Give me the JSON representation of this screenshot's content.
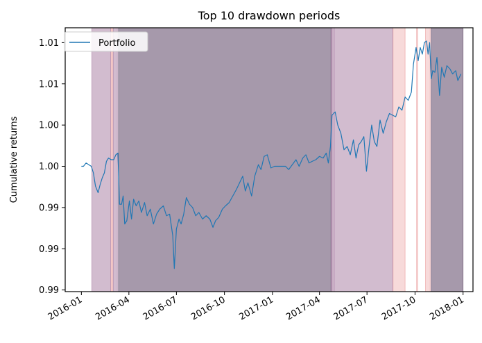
{
  "chart_data": {
    "type": "line",
    "title": "Top 10 drawdown periods",
    "xlabel": "",
    "ylabel": "Cumulative returns",
    "x_tick_labels": [
      "2016-01",
      "2016-04",
      "2016-07",
      "2016-10",
      "2017-01",
      "2017-04",
      "2017-07",
      "2017-10",
      "2018-01"
    ],
    "y_tick_labels": [
      "0.99",
      "0.99",
      "0.99",
      "1.00",
      "1.00",
      "1.01",
      "1.01"
    ],
    "y_tick_values": [
      0.9875,
      0.99,
      0.9925,
      0.995,
      0.9975,
      1.0,
      1.0025
    ],
    "ylim": [
      0.9874,
      1.0034
    ],
    "xlim": [
      "2015-12-01",
      "2018-01-20"
    ],
    "legend": {
      "position": "top-left",
      "entries": [
        "Portfolio"
      ]
    },
    "grid": false,
    "series": [
      {
        "name": "Portfolio",
        "color": "#1f77b4",
        "points": [
          [
            "2016-01-01",
            0.995
          ],
          [
            "2016-01-05",
            0.995
          ],
          [
            "2016-01-10",
            0.9952
          ],
          [
            "2016-01-15",
            0.9951
          ],
          [
            "2016-01-20",
            0.995
          ],
          [
            "2016-01-24",
            0.9946
          ],
          [
            "2016-01-28",
            0.9938
          ],
          [
            "2016-02-02",
            0.9934
          ],
          [
            "2016-02-06",
            0.9939
          ],
          [
            "2016-02-10",
            0.9943
          ],
          [
            "2016-02-14",
            0.9946
          ],
          [
            "2016-02-18",
            0.9953
          ],
          [
            "2016-02-22",
            0.9955
          ],
          [
            "2016-02-27",
            0.9954
          ],
          [
            "2016-03-03",
            0.9954
          ],
          [
            "2016-03-07",
            0.9957
          ],
          [
            "2016-03-11",
            0.9958
          ],
          [
            "2016-03-14",
            0.9927
          ],
          [
            "2016-03-18",
            0.9927
          ],
          [
            "2016-03-21",
            0.9932
          ],
          [
            "2016-03-24",
            0.9915
          ],
          [
            "2016-03-28",
            0.9917
          ],
          [
            "2016-04-02",
            0.9929
          ],
          [
            "2016-04-06",
            0.9918
          ],
          [
            "2016-04-10",
            0.993
          ],
          [
            "2016-04-15",
            0.9926
          ],
          [
            "2016-04-20",
            0.9929
          ],
          [
            "2016-04-25",
            0.9922
          ],
          [
            "2016-05-01",
            0.9928
          ],
          [
            "2016-05-06",
            0.992
          ],
          [
            "2016-05-12",
            0.9924
          ],
          [
            "2016-05-18",
            0.9915
          ],
          [
            "2016-05-24",
            0.9921
          ],
          [
            "2016-05-30",
            0.9924
          ],
          [
            "2016-06-06",
            0.9926
          ],
          [
            "2016-06-12",
            0.992
          ],
          [
            "2016-06-18",
            0.9921
          ],
          [
            "2016-06-24",
            0.9908
          ],
          [
            "2016-06-27",
            0.9888
          ],
          [
            "2016-07-01",
            0.9912
          ],
          [
            "2016-07-06",
            0.9918
          ],
          [
            "2016-07-10",
            0.9915
          ],
          [
            "2016-07-15",
            0.9921
          ],
          [
            "2016-07-20",
            0.9931
          ],
          [
            "2016-07-26",
            0.9927
          ],
          [
            "2016-08-01",
            0.9925
          ],
          [
            "2016-08-07",
            0.992
          ],
          [
            "2016-08-13",
            0.9922
          ],
          [
            "2016-08-20",
            0.9918
          ],
          [
            "2016-08-27",
            0.992
          ],
          [
            "2016-09-03",
            0.9918
          ],
          [
            "2016-09-09",
            0.9913
          ],
          [
            "2016-09-14",
            0.9917
          ],
          [
            "2016-09-20",
            0.9919
          ],
          [
            "2016-09-27",
            0.9924
          ],
          [
            "2016-10-03",
            0.9926
          ],
          [
            "2016-10-10",
            0.9928
          ],
          [
            "2016-10-17",
            0.9932
          ],
          [
            "2016-10-24",
            0.9936
          ],
          [
            "2016-10-30",
            0.994
          ],
          [
            "2016-11-05",
            0.9944
          ],
          [
            "2016-11-10",
            0.9935
          ],
          [
            "2016-11-15",
            0.994
          ],
          [
            "2016-11-22",
            0.9932
          ],
          [
            "2016-11-28",
            0.9944
          ],
          [
            "2016-12-05",
            0.9951
          ],
          [
            "2016-12-10",
            0.9948
          ],
          [
            "2016-12-16",
            0.9956
          ],
          [
            "2016-12-22",
            0.9957
          ],
          [
            "2016-12-29",
            0.9949
          ],
          [
            "2017-01-05",
            0.995
          ],
          [
            "2017-01-12",
            0.995
          ],
          [
            "2017-01-19",
            0.995
          ],
          [
            "2017-01-26",
            0.995
          ],
          [
            "2017-02-01",
            0.9948
          ],
          [
            "2017-02-08",
            0.9951
          ],
          [
            "2017-02-15",
            0.9954
          ],
          [
            "2017-02-21",
            0.995
          ],
          [
            "2017-02-28",
            0.9955
          ],
          [
            "2017-03-06",
            0.9957
          ],
          [
            "2017-03-12",
            0.9952
          ],
          [
            "2017-03-18",
            0.9953
          ],
          [
            "2017-03-25",
            0.9954
          ],
          [
            "2017-04-01",
            0.9956
          ],
          [
            "2017-04-08",
            0.9955
          ],
          [
            "2017-04-14",
            0.9958
          ],
          [
            "2017-04-18",
            0.9952
          ],
          [
            "2017-04-22",
            0.9962
          ],
          [
            "2017-04-25",
            0.9981
          ],
          [
            "2017-05-01",
            0.9983
          ],
          [
            "2017-05-06",
            0.9975
          ],
          [
            "2017-05-12",
            0.997
          ],
          [
            "2017-05-18",
            0.996
          ],
          [
            "2017-05-24",
            0.9962
          ],
          [
            "2017-05-30",
            0.9957
          ],
          [
            "2017-06-05",
            0.9966
          ],
          [
            "2017-06-10",
            0.9955
          ],
          [
            "2017-06-15",
            0.9963
          ],
          [
            "2017-06-20",
            0.9965
          ],
          [
            "2017-06-25",
            0.9968
          ],
          [
            "2017-06-30",
            0.9947
          ],
          [
            "2017-07-05",
            0.9962
          ],
          [
            "2017-07-10",
            0.9975
          ],
          [
            "2017-07-15",
            0.9965
          ],
          [
            "2017-07-20",
            0.9962
          ],
          [
            "2017-07-26",
            0.9978
          ],
          [
            "2017-08-01",
            0.997
          ],
          [
            "2017-08-07",
            0.9977
          ],
          [
            "2017-08-13",
            0.9982
          ],
          [
            "2017-08-19",
            0.9981
          ],
          [
            "2017-08-25",
            0.998
          ],
          [
            "2017-08-31",
            0.9986
          ],
          [
            "2017-09-06",
            0.9984
          ],
          [
            "2017-09-12",
            0.9992
          ],
          [
            "2017-09-18",
            0.999
          ],
          [
            "2017-09-24",
            0.9995
          ],
          [
            "2017-09-28",
            1.0012
          ],
          [
            "2017-10-03",
            1.0022
          ],
          [
            "2017-10-07",
            1.0014
          ],
          [
            "2017-10-11",
            1.0022
          ],
          [
            "2017-10-15",
            1.0018
          ],
          [
            "2017-10-19",
            1.0025
          ],
          [
            "2017-10-23",
            1.0026
          ],
          [
            "2017-10-26",
            1.0018
          ],
          [
            "2017-10-29",
            1.0025
          ],
          [
            "2017-11-01",
            1.0003
          ],
          [
            "2017-11-04",
            1.0008
          ],
          [
            "2017-11-08",
            1.0007
          ],
          [
            "2017-11-12",
            1.0016
          ],
          [
            "2017-11-17",
            0.9993
          ],
          [
            "2017-11-21",
            1.001
          ],
          [
            "2017-11-26",
            1.0004
          ],
          [
            "2017-12-01",
            1.0011
          ],
          [
            "2017-12-07",
            1.0009
          ],
          [
            "2017-12-12",
            1.0006
          ],
          [
            "2017-12-18",
            1.0008
          ],
          [
            "2017-12-22",
            1.0002
          ],
          [
            "2017-12-28",
            1.0006
          ]
        ]
      }
    ],
    "drawdown_regions": [
      {
        "start": "2016-01-21",
        "end": "2016-02-26",
        "color": "#9c6a95",
        "opacity": 0.45
      },
      {
        "start": "2016-02-27",
        "end": "2016-03-01",
        "color": "#e06d6d",
        "opacity": 0.25
      },
      {
        "start": "2016-03-02",
        "end": "2016-03-10",
        "color": "#9c6a95",
        "opacity": 0.45
      },
      {
        "start": "2016-03-12",
        "end": "2017-04-23",
        "color": "#5c4566",
        "opacity": 0.55
      },
      {
        "start": "2017-04-24",
        "end": "2017-04-28",
        "color": "#9c6a95",
        "opacity": 0.55
      },
      {
        "start": "2017-04-30",
        "end": "2017-08-19",
        "color": "#9c6a95",
        "opacity": 0.45
      },
      {
        "start": "2017-08-20",
        "end": "2017-09-12",
        "color": "#e06d6d",
        "opacity": 0.25
      },
      {
        "start": "2017-10-04",
        "end": "2017-10-06",
        "color": "#e06d6d",
        "opacity": 0.25
      },
      {
        "start": "2017-10-21",
        "end": "2017-10-30",
        "color": "#e06d6d",
        "opacity": 0.25
      },
      {
        "start": "2017-11-01",
        "end": "2018-01-01",
        "color": "#5c4566",
        "opacity": 0.55
      }
    ]
  }
}
